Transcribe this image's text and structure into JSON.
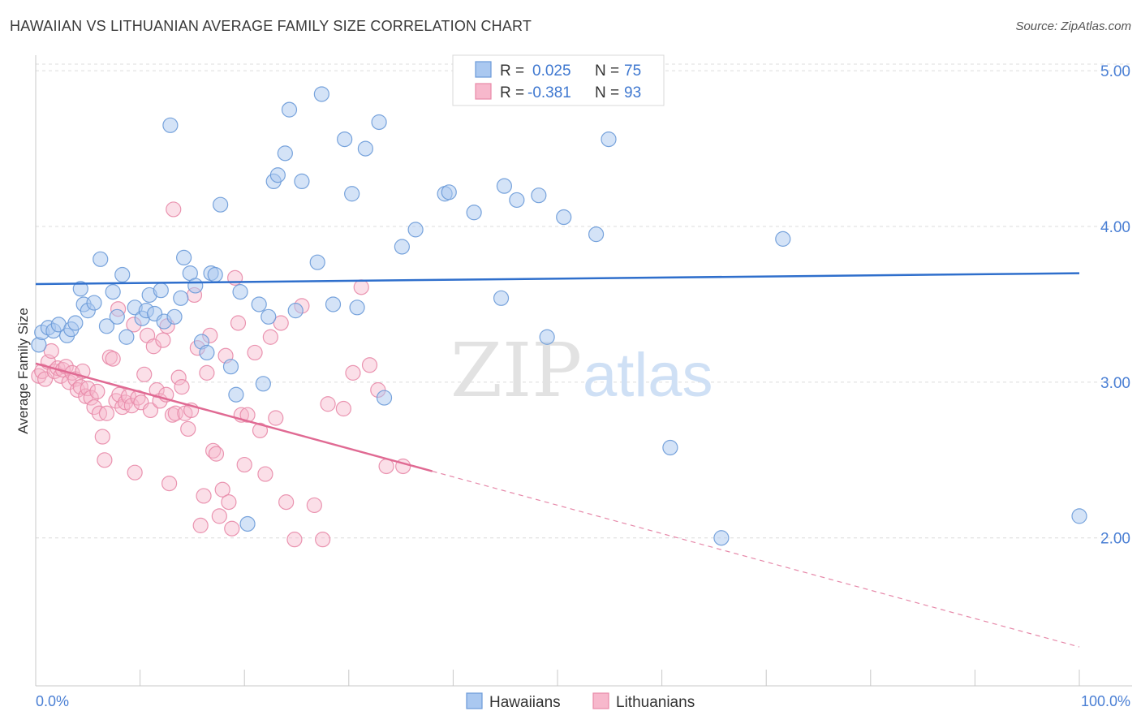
{
  "title": "HAWAIIAN VS LITHUANIAN AVERAGE FAMILY SIZE CORRELATION CHART",
  "source": "Source: ZipAtlas.com",
  "watermark": {
    "zip": "ZIP",
    "atlas": "atlas"
  },
  "colors": {
    "hawaiians_fill": "#aac8f0",
    "hawaiians_stroke": "#6a9ad8",
    "hawaiians_line": "#2f6fcc",
    "lithuanians_fill": "#f7b8cc",
    "lithuanians_stroke": "#e889a8",
    "lithuanians_line": "#e06a93",
    "tick_text": "#4a7fd4"
  },
  "legend": {
    "rows": [
      {
        "r_label": "R =",
        "r_value": "0.025",
        "n_label": "N =",
        "n_value": "75"
      },
      {
        "r_label": "R =",
        "r_value": "-0.381",
        "n_label": "N =",
        "n_value": "93"
      }
    ]
  },
  "bottom_legend": [
    "Hawaiians",
    "Lithuanians"
  ],
  "chart_data": {
    "type": "scatter",
    "title": "HAWAIIAN VS LITHUANIAN AVERAGE FAMILY SIZE CORRELATION CHART",
    "xlabel": "",
    "ylabel": "Average Family Size",
    "xlim": [
      0,
      100
    ],
    "ylim": [
      1.05,
      5.1
    ],
    "x_tick_labels": [
      "0.0%",
      "100.0%"
    ],
    "y_ticks": [
      2.0,
      3.0,
      4.0,
      5.0
    ],
    "y_tick_labels": [
      "2.00",
      "3.00",
      "4.00",
      "5.00"
    ],
    "grid": true,
    "legend_position": "top-center",
    "series": [
      {
        "name": "Hawaiians",
        "r": 0.025,
        "n": 75,
        "trend": {
          "x": [
            0,
            100
          ],
          "y": [
            3.63,
            3.7
          ]
        },
        "points": [
          [
            0.3,
            3.24
          ],
          [
            0.6,
            3.32
          ],
          [
            1.2,
            3.35
          ],
          [
            1.7,
            3.33
          ],
          [
            2.2,
            3.37
          ],
          [
            3.0,
            3.3
          ],
          [
            3.4,
            3.34
          ],
          [
            3.8,
            3.38
          ],
          [
            4.3,
            3.6
          ],
          [
            4.6,
            3.5
          ],
          [
            5.0,
            3.46
          ],
          [
            5.6,
            3.51
          ],
          [
            6.2,
            3.79
          ],
          [
            6.8,
            3.36
          ],
          [
            7.4,
            3.58
          ],
          [
            7.8,
            3.42
          ],
          [
            8.3,
            3.69
          ],
          [
            8.7,
            3.29
          ],
          [
            9.5,
            3.48
          ],
          [
            10.2,
            3.41
          ],
          [
            10.6,
            3.46
          ],
          [
            10.9,
            3.56
          ],
          [
            11.4,
            3.44
          ],
          [
            12.0,
            3.59
          ],
          [
            12.3,
            3.39
          ],
          [
            12.9,
            4.65
          ],
          [
            13.3,
            3.42
          ],
          [
            13.9,
            3.54
          ],
          [
            14.2,
            3.8
          ],
          [
            14.8,
            3.7
          ],
          [
            15.3,
            3.62
          ],
          [
            15.9,
            3.26
          ],
          [
            16.4,
            3.19
          ],
          [
            16.8,
            3.7
          ],
          [
            17.2,
            3.69
          ],
          [
            17.7,
            4.14
          ],
          [
            18.7,
            3.1
          ],
          [
            19.2,
            2.92
          ],
          [
            19.6,
            3.58
          ],
          [
            20.3,
            2.09
          ],
          [
            21.4,
            3.5
          ],
          [
            21.8,
            2.99
          ],
          [
            22.3,
            3.42
          ],
          [
            22.8,
            4.29
          ],
          [
            23.2,
            4.33
          ],
          [
            23.9,
            4.47
          ],
          [
            24.3,
            4.75
          ],
          [
            24.9,
            3.46
          ],
          [
            25.5,
            4.29
          ],
          [
            27.0,
            3.77
          ],
          [
            27.4,
            4.85
          ],
          [
            28.5,
            3.5
          ],
          [
            29.6,
            4.56
          ],
          [
            30.3,
            4.21
          ],
          [
            30.8,
            3.48
          ],
          [
            31.6,
            4.5
          ],
          [
            32.9,
            4.67
          ],
          [
            33.4,
            2.9
          ],
          [
            35.1,
            3.87
          ],
          [
            36.4,
            3.98
          ],
          [
            39.2,
            4.21
          ],
          [
            39.6,
            4.22
          ],
          [
            42.0,
            4.09
          ],
          [
            44.6,
            3.54
          ],
          [
            44.9,
            4.26
          ],
          [
            46.1,
            4.17
          ],
          [
            48.2,
            4.2
          ],
          [
            49.0,
            3.29
          ],
          [
            50.6,
            4.06
          ],
          [
            53.7,
            3.95
          ],
          [
            54.9,
            4.56
          ],
          [
            60.8,
            2.58
          ],
          [
            65.7,
            2.0
          ],
          [
            71.6,
            3.92
          ],
          [
            100.0,
            2.14
          ]
        ]
      },
      {
        "name": "Lithuanians",
        "r": -0.381,
        "n": 93,
        "trend": {
          "x": [
            0,
            100
          ],
          "y": [
            3.12,
            1.3
          ],
          "solid_until_x": 38
        },
        "points": [
          [
            0.3,
            3.04
          ],
          [
            0.6,
            3.07
          ],
          [
            0.9,
            3.02
          ],
          [
            1.2,
            3.13
          ],
          [
            1.5,
            3.2
          ],
          [
            1.8,
            3.07
          ],
          [
            2.1,
            3.09
          ],
          [
            2.4,
            3.04
          ],
          [
            2.6,
            3.08
          ],
          [
            2.9,
            3.1
          ],
          [
            3.2,
            3.0
          ],
          [
            3.5,
            3.06
          ],
          [
            3.8,
            3.02
          ],
          [
            4.0,
            2.95
          ],
          [
            4.3,
            2.97
          ],
          [
            4.5,
            3.07
          ],
          [
            4.8,
            2.91
          ],
          [
            5.0,
            2.96
          ],
          [
            5.3,
            2.9
          ],
          [
            5.6,
            2.84
          ],
          [
            5.9,
            2.94
          ],
          [
            6.1,
            2.8
          ],
          [
            6.4,
            2.65
          ],
          [
            6.6,
            2.5
          ],
          [
            6.8,
            2.8
          ],
          [
            7.1,
            3.16
          ],
          [
            7.4,
            3.15
          ],
          [
            7.7,
            2.88
          ],
          [
            8.0,
            2.92
          ],
          [
            8.3,
            2.84
          ],
          [
            8.6,
            2.87
          ],
          [
            8.9,
            2.91
          ],
          [
            9.2,
            2.85
          ],
          [
            9.5,
            2.42
          ],
          [
            9.8,
            2.9
          ],
          [
            10.1,
            2.87
          ],
          [
            10.4,
            3.05
          ],
          [
            10.7,
            3.3
          ],
          [
            11.0,
            2.82
          ],
          [
            11.3,
            3.23
          ],
          [
            11.6,
            2.95
          ],
          [
            11.9,
            2.88
          ],
          [
            12.2,
            3.27
          ],
          [
            12.5,
            2.92
          ],
          [
            12.8,
            2.35
          ],
          [
            13.1,
            2.79
          ],
          [
            13.4,
            2.8
          ],
          [
            13.7,
            3.03
          ],
          [
            14.0,
            2.97
          ],
          [
            14.3,
            2.8
          ],
          [
            14.6,
            2.7
          ],
          [
            14.9,
            2.82
          ],
          [
            15.2,
            3.56
          ],
          [
            15.5,
            3.22
          ],
          [
            15.8,
            2.08
          ],
          [
            16.1,
            2.27
          ],
          [
            16.4,
            3.06
          ],
          [
            16.7,
            3.3
          ],
          [
            17.0,
            2.56
          ],
          [
            17.3,
            2.54
          ],
          [
            17.6,
            2.14
          ],
          [
            17.9,
            2.31
          ],
          [
            18.2,
            3.17
          ],
          [
            18.5,
            2.23
          ],
          [
            18.8,
            2.06
          ],
          [
            19.1,
            3.67
          ],
          [
            19.4,
            3.38
          ],
          [
            19.7,
            2.79
          ],
          [
            20.0,
            2.47
          ],
          [
            20.3,
            2.79
          ],
          [
            21.0,
            3.19
          ],
          [
            21.5,
            2.69
          ],
          [
            22.0,
            2.41
          ],
          [
            22.5,
            3.29
          ],
          [
            23.0,
            2.77
          ],
          [
            23.5,
            3.38
          ],
          [
            24.0,
            2.23
          ],
          [
            24.8,
            1.99
          ],
          [
            25.5,
            3.49
          ],
          [
            26.7,
            2.21
          ],
          [
            27.5,
            1.99
          ],
          [
            28.0,
            2.86
          ],
          [
            29.5,
            2.83
          ],
          [
            30.4,
            3.06
          ],
          [
            31.2,
            3.61
          ],
          [
            32.0,
            3.11
          ],
          [
            32.8,
            2.95
          ],
          [
            33.6,
            2.46
          ],
          [
            35.2,
            2.46
          ],
          [
            9.4,
            3.37
          ],
          [
            13.2,
            4.11
          ],
          [
            12.6,
            3.36
          ],
          [
            7.9,
            3.47
          ]
        ]
      }
    ]
  }
}
